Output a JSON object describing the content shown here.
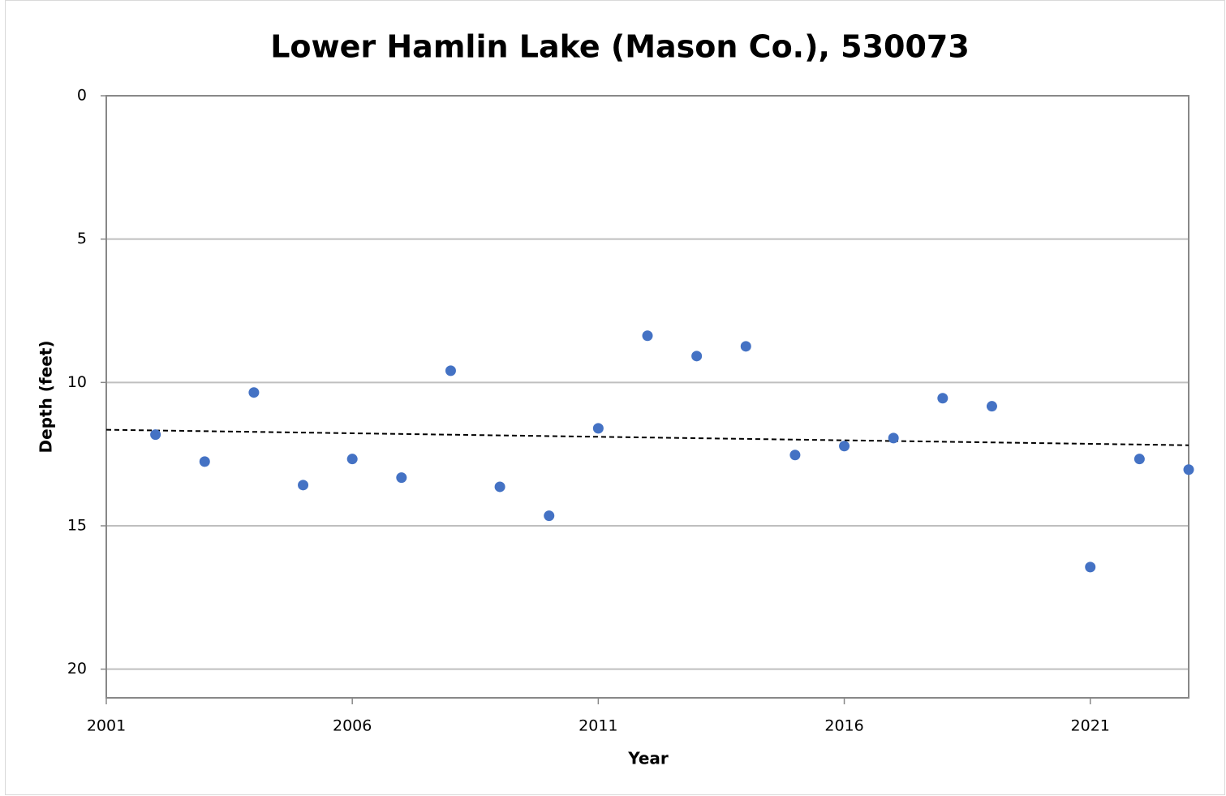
{
  "chart_data": {
    "type": "scatter",
    "title": "Lower Hamlin Lake (Mason Co.), 530073",
    "x_label": "Year",
    "y_label": "Depth (feet)",
    "x": [
      2002,
      2003,
      2004,
      2005,
      2006,
      2007,
      2008,
      2009,
      2010,
      2011,
      2012,
      2013,
      2014,
      2015,
      2016,
      2017,
      2018,
      2019,
      2021,
      2022,
      2023
    ],
    "values": [
      11.82,
      12.76,
      10.35,
      13.58,
      12.67,
      13.32,
      9.59,
      13.64,
      14.65,
      11.6,
      8.37,
      9.08,
      8.74,
      12.53,
      12.22,
      11.94,
      10.55,
      10.83,
      16.44,
      12.67,
      13.04
    ],
    "color": "#4472c4",
    "trendline": {
      "x": [
        2001,
        2023
      ],
      "values": [
        11.65,
        12.19
      ],
      "color": "#000000"
    },
    "xlim": [
      2001,
      2023
    ],
    "xticks": [
      2001,
      2006,
      2011,
      2016,
      2021
    ],
    "ylim": [
      0,
      21
    ],
    "yticks": [
      0,
      5,
      10,
      15,
      20
    ],
    "y_inverted": true,
    "grid": true
  }
}
